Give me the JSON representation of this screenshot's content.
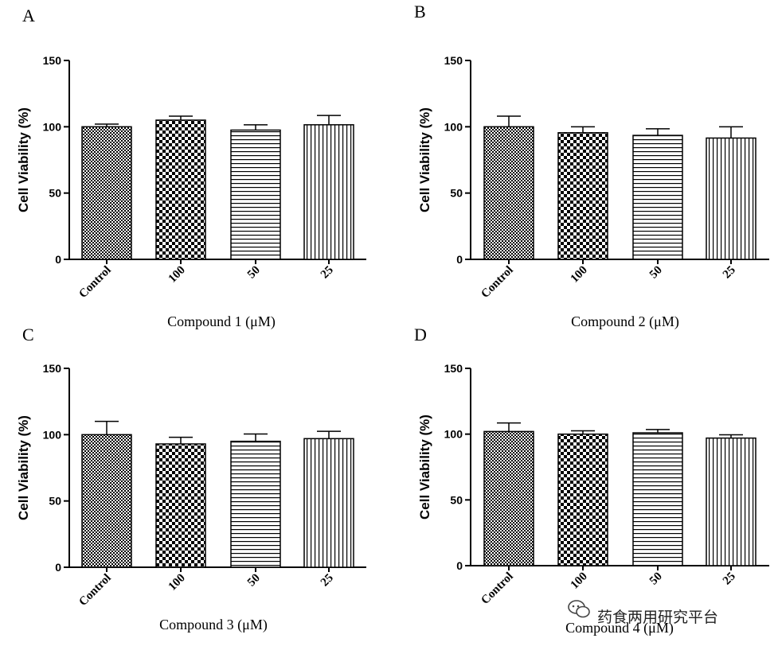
{
  "chart_data": [
    {
      "type": "bar",
      "panel": "A",
      "ylabel": "Cell Viability (%)",
      "xlabel": "Compound 1 (μM)",
      "ylim": [
        0,
        150
      ],
      "yticks": [
        0,
        50,
        100,
        150
      ],
      "categories": [
        "Control",
        "100",
        "50",
        "25"
      ],
      "values": [
        100,
        105,
        97.5,
        101.5
      ],
      "errors": [
        2,
        3,
        4,
        7
      ],
      "patterns": [
        "fine-check",
        "checker",
        "horizontal",
        "vertical"
      ]
    },
    {
      "type": "bar",
      "panel": "B",
      "ylabel": "Cell Viability (%)",
      "xlabel": "Compound 2 (μM)",
      "ylim": [
        0,
        150
      ],
      "yticks": [
        0,
        50,
        100,
        150
      ],
      "categories": [
        "Control",
        "100",
        "50",
        "25"
      ],
      "values": [
        100,
        95.5,
        93.5,
        91.5
      ],
      "errors": [
        8,
        4.5,
        5,
        8.5
      ],
      "patterns": [
        "fine-check",
        "checker",
        "horizontal",
        "vertical"
      ]
    },
    {
      "type": "bar",
      "panel": "C",
      "ylabel": "Cell Viability (%)",
      "xlabel": "Compound 3 (μM)",
      "ylim": [
        0,
        150
      ],
      "yticks": [
        0,
        50,
        100,
        150
      ],
      "categories": [
        "Control",
        "100",
        "50",
        "25"
      ],
      "values": [
        100,
        93,
        95,
        97
      ],
      "errors": [
        10,
        5,
        5.5,
        5.5
      ],
      "patterns": [
        "fine-check",
        "checker",
        "horizontal",
        "vertical"
      ]
    },
    {
      "type": "bar",
      "panel": "D",
      "ylabel": "Cell Viability (%)",
      "xlabel": "Compound 4 (μM)",
      "ylim": [
        0,
        150
      ],
      "yticks": [
        0,
        50,
        100,
        150
      ],
      "categories": [
        "Control",
        "100",
        "50",
        "25"
      ],
      "values": [
        102,
        100,
        101,
        97
      ],
      "errors": [
        6.5,
        2.5,
        2.5,
        2.5
      ],
      "patterns": [
        "fine-check",
        "checker",
        "horizontal",
        "vertical"
      ]
    }
  ],
  "watermark": {
    "text": "药食两用研究平台",
    "icon": "wechat-icon"
  },
  "colors": {
    "ink": "#000000",
    "background": "#ffffff"
  }
}
